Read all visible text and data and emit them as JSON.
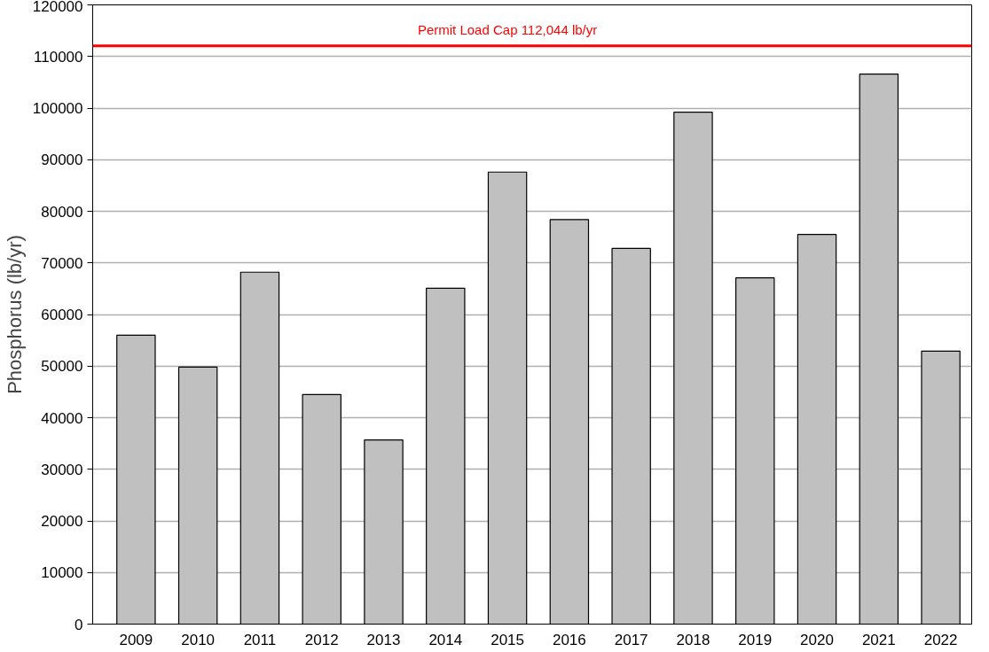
{
  "chart_data": {
    "type": "bar",
    "ylabel": "Phosphorus (lb/yr)",
    "categories": [
      "2009",
      "2010",
      "2011",
      "2012",
      "2013",
      "2014",
      "2015",
      "2016",
      "2017",
      "2018",
      "2019",
      "2020",
      "2021",
      "2022"
    ],
    "values": [
      56000,
      49800,
      68200,
      44500,
      35700,
      65100,
      87600,
      78400,
      72800,
      99200,
      67100,
      75500,
      106600,
      52900
    ],
    "color": "#c0c0c0",
    "ylim": [
      0,
      120000
    ],
    "yticks": [
      0,
      10000,
      20000,
      30000,
      40000,
      50000,
      60000,
      70000,
      80000,
      90000,
      100000,
      110000,
      120000
    ],
    "grid": "y",
    "ref_lines": [
      {
        "axis": "y",
        "value": 112044,
        "label": "Permit Load Cap 112,044 lb/yr",
        "color": "#ff0000"
      }
    ]
  }
}
